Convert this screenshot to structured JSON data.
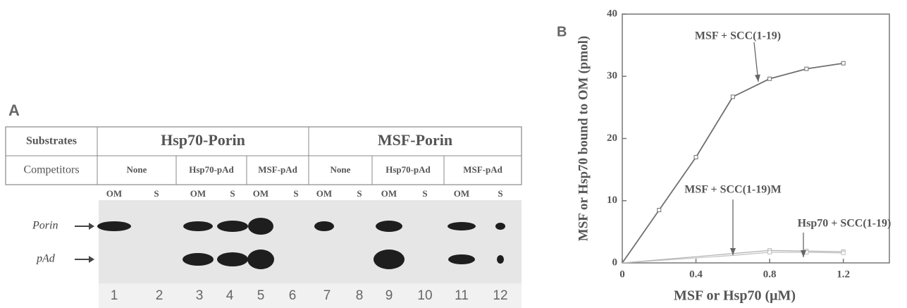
{
  "panel_a": {
    "label": "A",
    "header": [
      "Substrates",
      "Hsp70-Porin",
      "MSF-Porin"
    ],
    "competitors": [
      "Competitors",
      "None",
      "Hsp70-pAd",
      "MSF-pAd",
      "None",
      "Hsp70-pAd",
      "MSF-pAd"
    ],
    "fractions": [
      "OM",
      "S",
      "OM",
      "S",
      "OM",
      "S",
      "OM",
      "S",
      "OM",
      "S",
      "OM",
      "S"
    ],
    "bands": [
      "Porin",
      "pAd"
    ],
    "lanes": [
      "1",
      "2",
      "3",
      "4",
      "5",
      "6",
      "7",
      "8",
      "9",
      "10",
      "11",
      "12"
    ]
  },
  "panel_b_label": "B",
  "chart_data": {
    "type": "line",
    "x_label": "MSF or Hsp70 (μM)",
    "y_label": "MSF or Hsp70 bound to OM (pmol)",
    "x": [
      0,
      0.2,
      0.4,
      0.6,
      0.8,
      1.0,
      1.2
    ],
    "series": [
      {
        "name": "MSF + SCC(1-19)",
        "color": "#707070",
        "values": [
          0,
          8.5,
          17,
          26.7,
          29.6,
          31.2,
          32.1
        ]
      },
      {
        "name": "MSF + SCC(1-19)M",
        "color": "#b0b0b0",
        "values": [
          0,
          0.5,
          1.0,
          1.5,
          2.0,
          1.9,
          1.8
        ]
      },
      {
        "name": "Hsp70 + SCC(1-19)",
        "color": "#c0c0c0",
        "values": [
          0,
          0.4,
          0.8,
          1.2,
          1.7,
          1.7,
          1.6
        ]
      }
    ],
    "xlim": [
      0,
      1.45
    ],
    "ylim": [
      0,
      40
    ],
    "xticks": [
      0,
      0.4,
      0.8,
      1.2
    ],
    "yticks": [
      0,
      10,
      20,
      30,
      40
    ]
  }
}
